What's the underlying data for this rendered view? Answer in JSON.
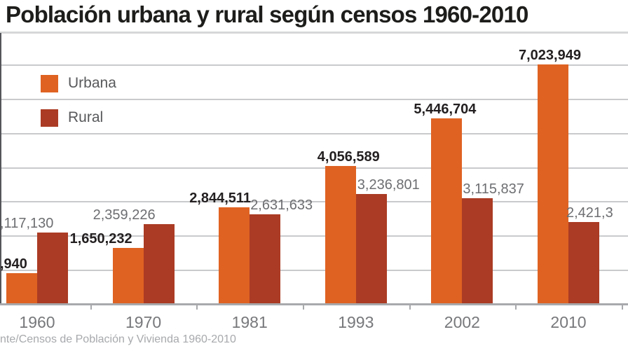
{
  "page": {
    "title": "Población urbana y rural según censos 1960-2010",
    "source_note": "nte/Censos de Población y Vivienda 1960-2010"
  },
  "legend": {
    "items": [
      {
        "label": "Urbana",
        "color": "#DF6222"
      },
      {
        "label": "Rural",
        "color": "#AB3B24"
      }
    ]
  },
  "colors": {
    "background": "#FFFFFF",
    "urban": "#DF6222",
    "rural": "#AB3B24",
    "title_text": "#1D1D1B",
    "urban_label": "#231F20",
    "rural_label": "#6D6E71",
    "year_label": "#77787B",
    "gridline": "#C9CACC",
    "axis_line": "#A7A9AC",
    "divider": "#D6D7D8",
    "source_text": "#A7A9AC",
    "legend_text": "#58595B",
    "yaxis_line": "#55565A"
  },
  "chart_data": {
    "type": "bar",
    "title": "Población urbana y rural según censos 1960-2010",
    "categories": [
      "1960",
      "1970",
      "1981",
      "1993",
      "2002",
      "2010"
    ],
    "series": [
      {
        "name": "Urbana",
        "key": "urban",
        "values": [
          929940,
          1650232,
          2844511,
          4056589,
          5446704,
          7023949
        ],
        "labels": [
          ",940",
          "1,650,232",
          "2,844,511",
          "4,056,589",
          "5,446,704",
          "7,023,949"
        ],
        "label_dx": [
          -53,
          -105,
          -86,
          -55,
          -69,
          -71
        ]
      },
      {
        "name": "Rural",
        "key": "rural",
        "values": [
          2117130,
          2359226,
          2631633,
          3236801,
          3115837,
          2421330
        ],
        "labels": [
          ",117,130",
          "2,359,226",
          "2,631,633",
          "3,236,801",
          "3,115,837",
          "2,421,3"
        ],
        "label_dx": [
          -53,
          -72,
          1,
          2,
          1,
          -3
        ]
      }
    ],
    "ylim": [
      0,
      8000000
    ],
    "gridline_step": 1000000,
    "grid": true,
    "legend_position": "top-left",
    "notes": "Value labels ',940' and ',117,130' (1960) and '2,421,3' (2010 rural) are clipped by the image edges; underlying values estimated from bar heights."
  }
}
